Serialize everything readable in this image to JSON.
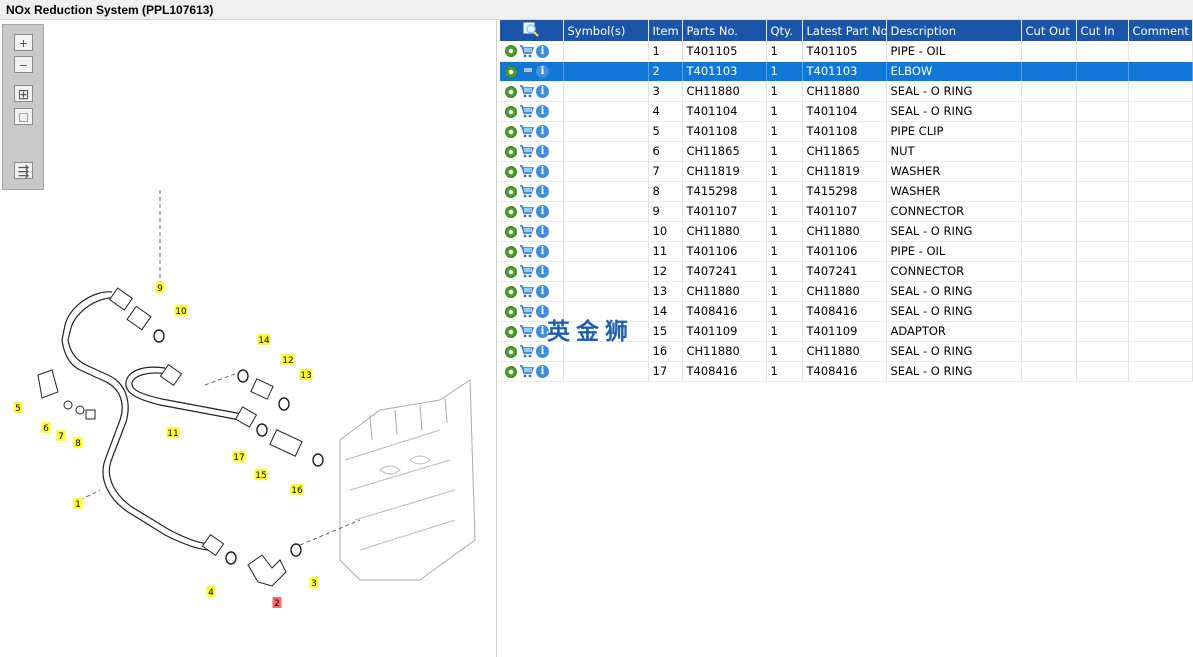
{
  "window": {
    "title": "NOx Reduction System (PPL107613)"
  },
  "toolbox": {
    "buttons": [
      {
        "name": "zoom-in",
        "glyph": "+"
      },
      {
        "name": "zoom-out",
        "glyph": "−"
      },
      {
        "name": "fit-all",
        "glyph": "⊞"
      },
      {
        "name": "actual-size",
        "glyph": "□"
      },
      {
        "name": "toggle-panel",
        "glyph": "⇶"
      }
    ]
  },
  "diagram": {
    "callouts": [
      "1",
      "2",
      "3",
      "4",
      "5",
      "6",
      "7",
      "8",
      "9",
      "10",
      "11",
      "12",
      "13",
      "14",
      "15",
      "16",
      "17"
    ],
    "highlighted_callout": "2",
    "colors": {
      "callout": "#ffff33",
      "callout_selected": "#ff6b6b"
    }
  },
  "table": {
    "headers": {
      "symbols": "Symbol(s)",
      "item": "Item",
      "parts_no": "Parts No.",
      "qty": "Qty.",
      "latest": "Latest Part No.",
      "description": "Description",
      "cut_out": "Cut Out",
      "cut_in": "Cut In",
      "comment": "Comment"
    },
    "selected_row": 1,
    "rows": [
      {
        "item": "1",
        "parts_no": "T401105",
        "qty": "1",
        "latest": "T401105",
        "description": "PIPE - OIL"
      },
      {
        "item": "2",
        "parts_no": "T401103",
        "qty": "1",
        "latest": "T401103",
        "description": "ELBOW"
      },
      {
        "item": "3",
        "parts_no": "CH11880",
        "qty": "1",
        "latest": "CH11880",
        "description": "SEAL - O RING"
      },
      {
        "item": "4",
        "parts_no": "T401104",
        "qty": "1",
        "latest": "T401104",
        "description": "SEAL - O RING"
      },
      {
        "item": "5",
        "parts_no": "T401108",
        "qty": "1",
        "latest": "T401108",
        "description": "PIPE CLIP"
      },
      {
        "item": "6",
        "parts_no": "CH11865",
        "qty": "1",
        "latest": "CH11865",
        "description": "NUT"
      },
      {
        "item": "7",
        "parts_no": "CH11819",
        "qty": "1",
        "latest": "CH11819",
        "description": "WASHER"
      },
      {
        "item": "8",
        "parts_no": "T415298",
        "qty": "1",
        "latest": "T415298",
        "description": "WASHER"
      },
      {
        "item": "9",
        "parts_no": "T401107",
        "qty": "1",
        "latest": "T401107",
        "description": "CONNECTOR"
      },
      {
        "item": "10",
        "parts_no": "CH11880",
        "qty": "1",
        "latest": "CH11880",
        "description": "SEAL - O RING"
      },
      {
        "item": "11",
        "parts_no": "T401106",
        "qty": "1",
        "latest": "T401106",
        "description": "PIPE - OIL"
      },
      {
        "item": "12",
        "parts_no": "T407241",
        "qty": "1",
        "latest": "T407241",
        "description": "CONNECTOR"
      },
      {
        "item": "13",
        "parts_no": "CH11880",
        "qty": "1",
        "latest": "CH11880",
        "description": "SEAL - O RING"
      },
      {
        "item": "14",
        "parts_no": "T408416",
        "qty": "1",
        "latest": "T408416",
        "description": "SEAL - O RING"
      },
      {
        "item": "15",
        "parts_no": "T401109",
        "qty": "1",
        "latest": "T401109",
        "description": "ADAPTOR"
      },
      {
        "item": "16",
        "parts_no": "CH11880",
        "qty": "1",
        "latest": "CH11880",
        "description": "SEAL - O RING"
      },
      {
        "item": "17",
        "parts_no": "T408416",
        "qty": "1",
        "latest": "T408416",
        "description": "SEAL - O RING"
      }
    ]
  },
  "watermark": {
    "text": "英金狮"
  },
  "colors": {
    "header_bg": "#1b55a9",
    "selected_row_bg": "#0f78d6",
    "toolbox_bg": "#c9c9c9"
  }
}
